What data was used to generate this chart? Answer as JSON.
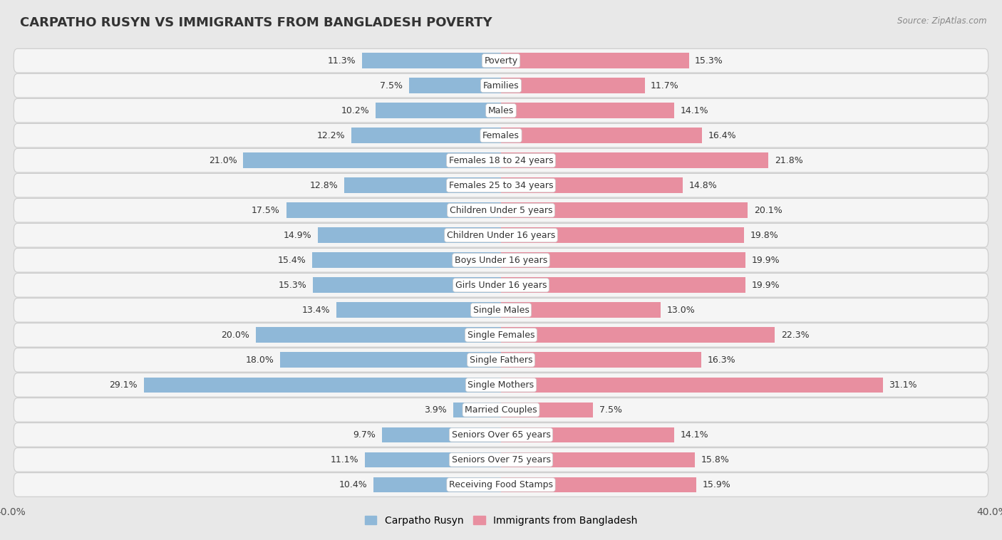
{
  "title": "CARPATHO RUSYN VS IMMIGRANTS FROM BANGLADESH POVERTY",
  "source": "Source: ZipAtlas.com",
  "categories": [
    "Poverty",
    "Families",
    "Males",
    "Females",
    "Females 18 to 24 years",
    "Females 25 to 34 years",
    "Children Under 5 years",
    "Children Under 16 years",
    "Boys Under 16 years",
    "Girls Under 16 years",
    "Single Males",
    "Single Females",
    "Single Fathers",
    "Single Mothers",
    "Married Couples",
    "Seniors Over 65 years",
    "Seniors Over 75 years",
    "Receiving Food Stamps"
  ],
  "left_values": [
    11.3,
    7.5,
    10.2,
    12.2,
    21.0,
    12.8,
    17.5,
    14.9,
    15.4,
    15.3,
    13.4,
    20.0,
    18.0,
    29.1,
    3.9,
    9.7,
    11.1,
    10.4
  ],
  "right_values": [
    15.3,
    11.7,
    14.1,
    16.4,
    21.8,
    14.8,
    20.1,
    19.8,
    19.9,
    19.9,
    13.0,
    22.3,
    16.3,
    31.1,
    7.5,
    14.1,
    15.8,
    15.9
  ],
  "left_color": "#8fb8d8",
  "right_color": "#e88fa0",
  "left_label": "Carpatho Rusyn",
  "right_label": "Immigrants from Bangladesh",
  "xlim": 40.0,
  "background_color": "#e8e8e8",
  "row_color": "#f5f5f5",
  "row_border_color": "#cccccc",
  "bar_height": 0.62,
  "label_fontsize": 9.0,
  "value_fontsize": 9.0,
  "title_fontsize": 13
}
